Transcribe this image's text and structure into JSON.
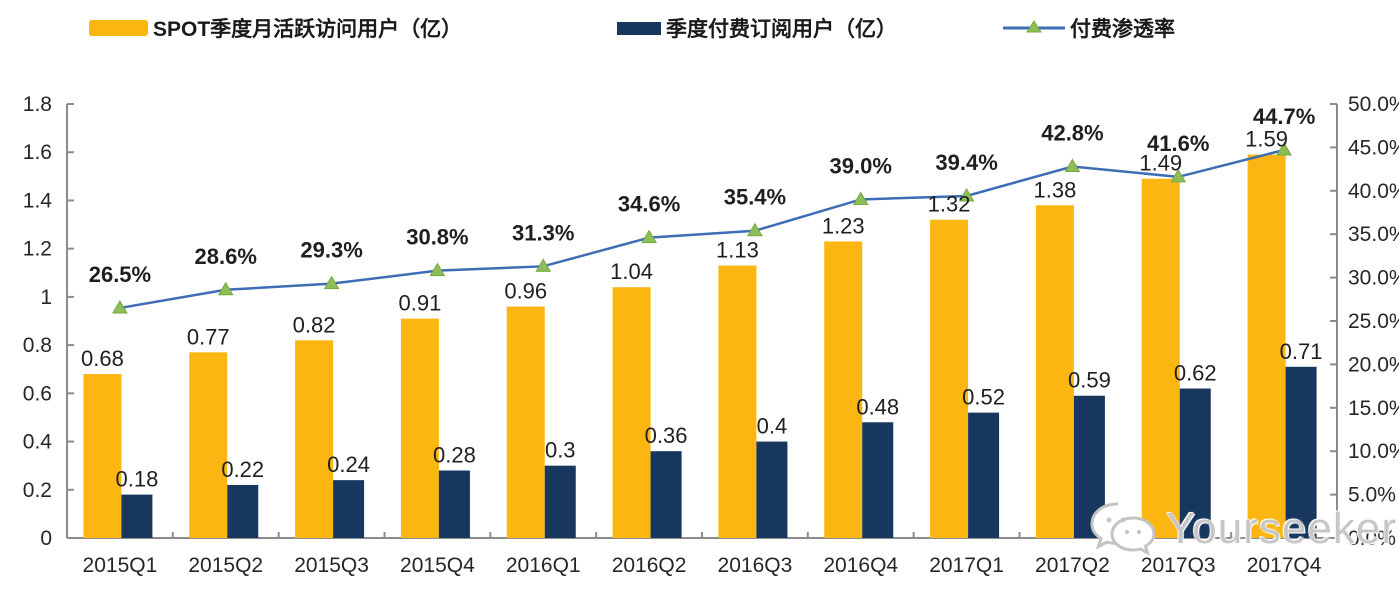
{
  "legend": {
    "items": [
      {
        "label": "SPOT季度月活跃访问用户（亿）",
        "swatch": "yellow-bar-swatch"
      },
      {
        "label": "季度付费订阅用户（亿）",
        "swatch": "navy-bar-swatch"
      },
      {
        "label": "付费渗透率",
        "swatch": "line-marker-swatch"
      }
    ]
  },
  "chart_data": {
    "type": "bar",
    "subtype": "combo-bar-line",
    "categories": [
      "2015Q1",
      "2015Q2",
      "2015Q3",
      "2015Q4",
      "2016Q1",
      "2016Q2",
      "2016Q3",
      "2016Q4",
      "2017Q1",
      "2017Q2",
      "2017Q3",
      "2017Q4"
    ],
    "series": [
      {
        "name": "SPOT季度月活跃访问用户（亿）",
        "type": "bar",
        "axis": "left",
        "color": "#FBB612",
        "values": [
          0.68,
          0.77,
          0.82,
          0.91,
          0.96,
          1.04,
          1.13,
          1.23,
          1.32,
          1.38,
          1.49,
          1.59
        ],
        "labels": [
          "0.68",
          "0.77",
          "0.82",
          "0.91",
          "0.96",
          "1.04",
          "1.13",
          "1.23",
          "1.32",
          "1.38",
          "1.49",
          "1.59"
        ]
      },
      {
        "name": "季度付费订阅用户（亿）",
        "type": "bar",
        "axis": "left",
        "color": "#17375E",
        "values": [
          0.18,
          0.22,
          0.24,
          0.28,
          0.3,
          0.36,
          0.4,
          0.48,
          0.52,
          0.59,
          0.62,
          0.71
        ],
        "labels": [
          "0.18",
          "0.22",
          "0.24",
          "0.28",
          "0.3",
          "0.36",
          "0.4",
          "0.48",
          "0.52",
          "0.59",
          "0.62",
          "0.71"
        ]
      },
      {
        "name": "付费渗透率",
        "type": "line",
        "axis": "right",
        "color": "#3E6DB5",
        "marker": "triangle",
        "marker_color": "#8DBE5A",
        "values": [
          26.5,
          28.6,
          29.3,
          30.8,
          31.3,
          34.6,
          35.4,
          39.0,
          39.4,
          42.8,
          41.6,
          44.7
        ],
        "labels": [
          "26.5%",
          "28.6%",
          "29.3%",
          "30.8%",
          "31.3%",
          "34.6%",
          "35.4%",
          "39.0%",
          "39.4%",
          "42.8%",
          "41.6%",
          "44.7%"
        ]
      }
    ],
    "left_axis": {
      "min": 0,
      "max": 1.8,
      "ticks": [
        "0",
        "0.2",
        "0.4",
        "0.6",
        "0.8",
        "1",
        "1.2",
        "1.4",
        "1.6",
        "1.8"
      ]
    },
    "right_axis": {
      "min": 0,
      "max": 50,
      "ticks": [
        "0.0%",
        "5.0%",
        "10.0%",
        "15.0%",
        "20.0%",
        "25.0%",
        "30.0%",
        "35.0%",
        "40.0%",
        "45.0%",
        "50.0%"
      ]
    },
    "grid": false,
    "legend_position": "top",
    "title": "",
    "xlabel": "",
    "ylabel": ""
  },
  "watermark": {
    "text": "Yourseeker",
    "icon": "wechat-icon"
  },
  "colors": {
    "bar_mau": "#FBB612",
    "bar_subs": "#17375E",
    "line": "#3E6DB5",
    "marker": "#8DBE5A",
    "axis": "#8c8c8c",
    "text": "#1f1f1f"
  }
}
